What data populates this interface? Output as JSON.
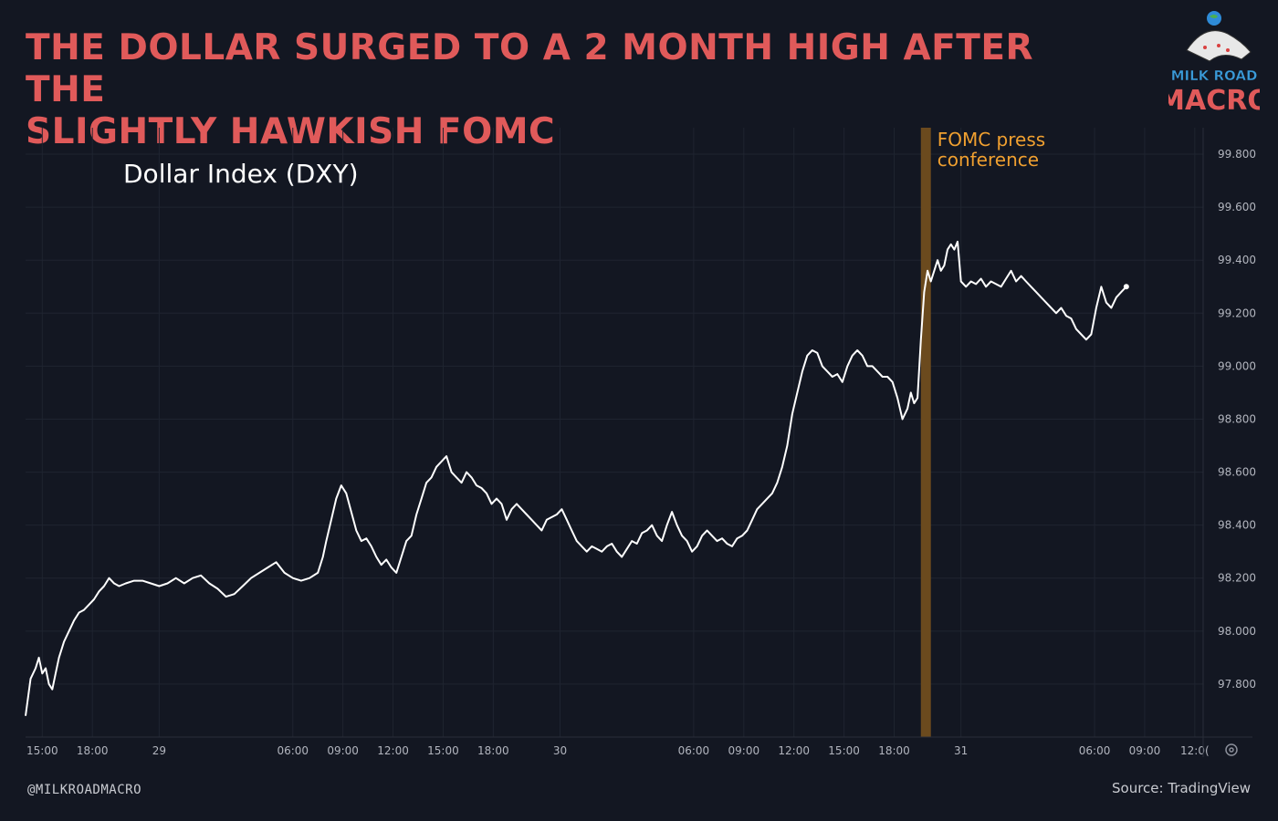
{
  "headline": {
    "line1": "THE DOLLAR SURGED TO A 2 MONTH HIGH AFTER THE",
    "line2": "SLIGHTLY HAWKISH FOMC"
  },
  "logo": {
    "line1": "MILK ROAD",
    "line2": "MACRO"
  },
  "footer": {
    "handle": "@MILKROADMACRO",
    "source": "Source: TradingView"
  },
  "colors": {
    "background": "#131722",
    "headline": "#e05a5a",
    "line": "#ffffff",
    "highlight_band": "#6b4a1e",
    "annotation": "#f0a030",
    "grid": "#1f2430",
    "tick_text": "#b2b5be"
  },
  "settings_icon": "gear-icon",
  "chart_data": {
    "type": "line",
    "title": "Dollar Index (DXY)",
    "ylim": [
      97.6,
      99.9
    ],
    "yticks": [
      "97.800",
      "98.000",
      "98.200",
      "98.400",
      "98.600",
      "98.800",
      "99.000",
      "99.200",
      "99.400",
      "99.600",
      "99.800"
    ],
    "ytick_values": [
      97.8,
      98.0,
      98.2,
      98.4,
      98.6,
      98.8,
      99.0,
      99.2,
      99.4,
      99.6,
      99.8
    ],
    "x_ticks": [
      {
        "label": "15:00",
        "hour": 15
      },
      {
        "label": "18:00",
        "hour": 18
      },
      {
        "label": "29",
        "hour": 22
      },
      {
        "label": "06:00",
        "hour": 30
      },
      {
        "label": "09:00",
        "hour": 33
      },
      {
        "label": "12:00",
        "hour": 36
      },
      {
        "label": "15:00",
        "hour": 39
      },
      {
        "label": "18:00",
        "hour": 42
      },
      {
        "label": "30",
        "hour": 46
      },
      {
        "label": "06:00",
        "hour": 54
      },
      {
        "label": "09:00",
        "hour": 57
      },
      {
        "label": "12:00",
        "hour": 60
      },
      {
        "label": "15:00",
        "hour": 63
      },
      {
        "label": "18:00",
        "hour": 66
      },
      {
        "label": "31",
        "hour": 70
      },
      {
        "label": "06:00",
        "hour": 78
      },
      {
        "label": "09:00",
        "hour": 81
      },
      {
        "label": "12:0(",
        "hour": 84
      }
    ],
    "xlim_hours": [
      14.0,
      84.5
    ],
    "grid": true,
    "highlight": {
      "start_hour": 67.6,
      "end_hour": 68.2,
      "label_line1": "FOMC press",
      "label_line2": "conference"
    },
    "series": [
      {
        "values": [
          [
            14.0,
            97.68
          ],
          [
            14.3,
            97.82
          ],
          [
            14.6,
            97.86
          ],
          [
            14.8,
            97.9
          ],
          [
            15.0,
            97.84
          ],
          [
            15.2,
            97.86
          ],
          [
            15.4,
            97.8
          ],
          [
            15.6,
            97.78
          ],
          [
            15.8,
            97.84
          ],
          [
            16.0,
            97.9
          ],
          [
            16.3,
            97.96
          ],
          [
            16.6,
            98.0
          ],
          [
            16.9,
            98.04
          ],
          [
            17.2,
            98.07
          ],
          [
            17.5,
            98.08
          ],
          [
            17.8,
            98.1
          ],
          [
            18.1,
            98.12
          ],
          [
            18.4,
            98.15
          ],
          [
            18.7,
            98.17
          ],
          [
            19.0,
            98.2
          ],
          [
            19.3,
            98.18
          ],
          [
            19.6,
            98.17
          ],
          [
            20.0,
            98.18
          ],
          [
            20.5,
            98.19
          ],
          [
            21.0,
            98.19
          ],
          [
            21.5,
            98.18
          ],
          [
            22.0,
            98.17
          ],
          [
            22.5,
            98.18
          ],
          [
            23.0,
            98.2
          ],
          [
            23.5,
            98.18
          ],
          [
            24.0,
            98.2
          ],
          [
            24.5,
            98.21
          ],
          [
            25.0,
            98.18
          ],
          [
            25.5,
            98.16
          ],
          [
            26.0,
            98.13
          ],
          [
            26.5,
            98.14
          ],
          [
            27.0,
            98.17
          ],
          [
            27.5,
            98.2
          ],
          [
            28.0,
            98.22
          ],
          [
            28.5,
            98.24
          ],
          [
            29.0,
            98.26
          ],
          [
            29.5,
            98.22
          ],
          [
            30.0,
            98.2
          ],
          [
            30.5,
            98.19
          ],
          [
            31.0,
            98.2
          ],
          [
            31.5,
            98.22
          ],
          [
            31.8,
            98.28
          ],
          [
            32.0,
            98.34
          ],
          [
            32.3,
            98.42
          ],
          [
            32.6,
            98.5
          ],
          [
            32.9,
            98.55
          ],
          [
            33.2,
            98.52
          ],
          [
            33.5,
            98.45
          ],
          [
            33.8,
            98.38
          ],
          [
            34.1,
            98.34
          ],
          [
            34.4,
            98.35
          ],
          [
            34.7,
            98.32
          ],
          [
            35.0,
            98.28
          ],
          [
            35.3,
            98.25
          ],
          [
            35.6,
            98.27
          ],
          [
            35.9,
            98.24
          ],
          [
            36.2,
            98.22
          ],
          [
            36.5,
            98.28
          ],
          [
            36.8,
            98.34
          ],
          [
            37.1,
            98.36
          ],
          [
            37.4,
            98.44
          ],
          [
            37.7,
            98.5
          ],
          [
            38.0,
            98.56
          ],
          [
            38.3,
            98.58
          ],
          [
            38.6,
            98.62
          ],
          [
            38.9,
            98.64
          ],
          [
            39.2,
            98.66
          ],
          [
            39.5,
            98.6
          ],
          [
            39.8,
            98.58
          ],
          [
            40.1,
            98.56
          ],
          [
            40.4,
            98.6
          ],
          [
            40.7,
            98.58
          ],
          [
            41.0,
            98.55
          ],
          [
            41.3,
            98.54
          ],
          [
            41.6,
            98.52
          ],
          [
            41.9,
            98.48
          ],
          [
            42.2,
            98.5
          ],
          [
            42.5,
            98.48
          ],
          [
            42.8,
            98.42
          ],
          [
            43.1,
            98.46
          ],
          [
            43.4,
            98.48
          ],
          [
            43.7,
            98.46
          ],
          [
            44.0,
            98.44
          ],
          [
            44.3,
            98.42
          ],
          [
            44.6,
            98.4
          ],
          [
            44.9,
            98.38
          ],
          [
            45.2,
            98.42
          ],
          [
            45.5,
            98.43
          ],
          [
            45.8,
            98.44
          ],
          [
            46.1,
            98.46
          ],
          [
            46.4,
            98.42
          ],
          [
            46.7,
            98.38
          ],
          [
            47.0,
            98.34
          ],
          [
            47.3,
            98.32
          ],
          [
            47.6,
            98.3
          ],
          [
            47.9,
            98.32
          ],
          [
            48.2,
            98.31
          ],
          [
            48.5,
            98.3
          ],
          [
            48.8,
            98.32
          ],
          [
            49.1,
            98.33
          ],
          [
            49.4,
            98.3
          ],
          [
            49.7,
            98.28
          ],
          [
            50.0,
            98.31
          ],
          [
            50.3,
            98.34
          ],
          [
            50.6,
            98.33
          ],
          [
            50.9,
            98.37
          ],
          [
            51.2,
            98.38
          ],
          [
            51.5,
            98.4
          ],
          [
            51.8,
            98.36
          ],
          [
            52.1,
            98.34
          ],
          [
            52.4,
            98.4
          ],
          [
            52.7,
            98.45
          ],
          [
            53.0,
            98.4
          ],
          [
            53.3,
            98.36
          ],
          [
            53.6,
            98.34
          ],
          [
            53.9,
            98.3
          ],
          [
            54.2,
            98.32
          ],
          [
            54.5,
            98.36
          ],
          [
            54.8,
            98.38
          ],
          [
            55.1,
            98.36
          ],
          [
            55.4,
            98.34
          ],
          [
            55.7,
            98.35
          ],
          [
            56.0,
            98.33
          ],
          [
            56.3,
            98.32
          ],
          [
            56.6,
            98.35
          ],
          [
            56.9,
            98.36
          ],
          [
            57.2,
            98.38
          ],
          [
            57.5,
            98.42
          ],
          [
            57.8,
            98.46
          ],
          [
            58.1,
            98.48
          ],
          [
            58.4,
            98.5
          ],
          [
            58.7,
            98.52
          ],
          [
            59.0,
            98.56
          ],
          [
            59.3,
            98.62
          ],
          [
            59.6,
            98.7
          ],
          [
            59.9,
            98.82
          ],
          [
            60.2,
            98.9
          ],
          [
            60.5,
            98.98
          ],
          [
            60.8,
            99.04
          ],
          [
            61.1,
            99.06
          ],
          [
            61.4,
            99.05
          ],
          [
            61.7,
            99.0
          ],
          [
            62.0,
            98.98
          ],
          [
            62.3,
            98.96
          ],
          [
            62.6,
            98.97
          ],
          [
            62.9,
            98.94
          ],
          [
            63.2,
            99.0
          ],
          [
            63.5,
            99.04
          ],
          [
            63.8,
            99.06
          ],
          [
            64.1,
            99.04
          ],
          [
            64.4,
            99.0
          ],
          [
            64.7,
            99.0
          ],
          [
            65.0,
            98.98
          ],
          [
            65.3,
            98.96
          ],
          [
            65.6,
            98.96
          ],
          [
            65.9,
            98.94
          ],
          [
            66.2,
            98.88
          ],
          [
            66.5,
            98.8
          ],
          [
            66.8,
            98.84
          ],
          [
            67.0,
            98.9
          ],
          [
            67.2,
            98.86
          ],
          [
            67.4,
            98.88
          ],
          [
            67.6,
            99.1
          ],
          [
            67.8,
            99.28
          ],
          [
            68.0,
            99.36
          ],
          [
            68.2,
            99.32
          ],
          [
            68.4,
            99.36
          ],
          [
            68.6,
            99.4
          ],
          [
            68.8,
            99.36
          ],
          [
            69.0,
            99.38
          ],
          [
            69.2,
            99.44
          ],
          [
            69.4,
            99.46
          ],
          [
            69.6,
            99.44
          ],
          [
            69.8,
            99.47
          ],
          [
            70.0,
            99.32
          ],
          [
            70.3,
            99.3
          ],
          [
            70.6,
            99.32
          ],
          [
            70.9,
            99.31
          ],
          [
            71.2,
            99.33
          ],
          [
            71.5,
            99.3
          ],
          [
            71.8,
            99.32
          ],
          [
            72.1,
            99.31
          ],
          [
            72.4,
            99.3
          ],
          [
            72.7,
            99.33
          ],
          [
            73.0,
            99.36
          ],
          [
            73.3,
            99.32
          ],
          [
            73.6,
            99.34
          ],
          [
            73.9,
            99.32
          ],
          [
            74.2,
            99.3
          ],
          [
            74.5,
            99.28
          ],
          [
            74.8,
            99.26
          ],
          [
            75.1,
            99.24
          ],
          [
            75.4,
            99.22
          ],
          [
            75.7,
            99.2
          ],
          [
            76.0,
            99.22
          ],
          [
            76.3,
            99.19
          ],
          [
            76.6,
            99.18
          ],
          [
            76.9,
            99.14
          ],
          [
            77.2,
            99.12
          ],
          [
            77.5,
            99.1
          ],
          [
            77.8,
            99.12
          ],
          [
            78.1,
            99.22
          ],
          [
            78.4,
            99.3
          ],
          [
            78.7,
            99.24
          ],
          [
            79.0,
            99.22
          ],
          [
            79.3,
            99.26
          ],
          [
            79.6,
            99.28
          ],
          [
            79.9,
            99.3
          ]
        ]
      }
    ]
  }
}
